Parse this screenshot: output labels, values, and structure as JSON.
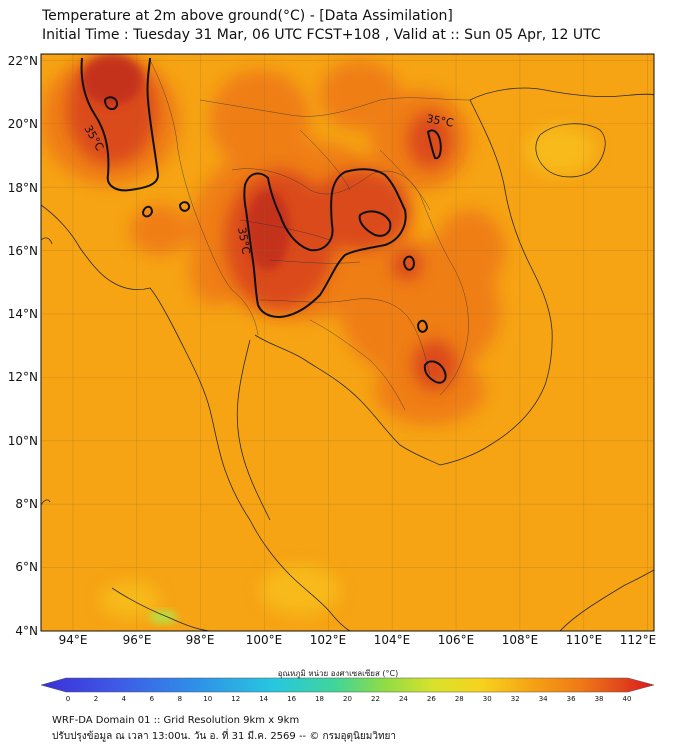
{
  "title": {
    "line1": "Temperature at 2m above ground(°C) - [Data Assimilation]",
    "line2": "Initial Time : Tuesday 31 Mar, 06 UTC FCST+108 , Valid at :: Sun 05 Apr, 12 UTC"
  },
  "map": {
    "lon_range": [
      93,
      112.2
    ],
    "lat_range": [
      4,
      22.2
    ],
    "lat_ticks": [
      "22°N",
      "20°N",
      "18°N",
      "16°N",
      "14°N",
      "12°N",
      "10°N",
      "8°N",
      "6°N",
      "4°N"
    ],
    "lon_ticks": [
      "94°E",
      "96°E",
      "98°E",
      "100°E",
      "102°E",
      "104°E",
      "106°E",
      "108°E",
      "110°E",
      "112°E"
    ],
    "contour_label": "35°C",
    "colors": {
      "background": "#f6a314",
      "warm": "#ef7d16",
      "hot": "#d9441a",
      "hottest": "#c22d1c",
      "cool": "#f8c21c",
      "coolest": "#b6e24a"
    }
  },
  "colorbar": {
    "title": "อุณหภูมิ หน่วย องศาเซลเซียส (°C)",
    "ticks": [
      "0",
      "2",
      "4",
      "6",
      "8",
      "10",
      "12",
      "14",
      "16",
      "18",
      "20",
      "22",
      "24",
      "26",
      "28",
      "30",
      "32",
      "34",
      "36",
      "38",
      "40"
    ]
  },
  "footer": {
    "line1": "WRF-DA Domain 01 :: Grid Resolution 9km x 9km",
    "line2": "ปรับปรุงข้อมูล ณ เวลา 13:00น. วัน อ. ที่ 31 มี.ค. 2569 -- © กรมอุตุนิยมวิทยา"
  }
}
